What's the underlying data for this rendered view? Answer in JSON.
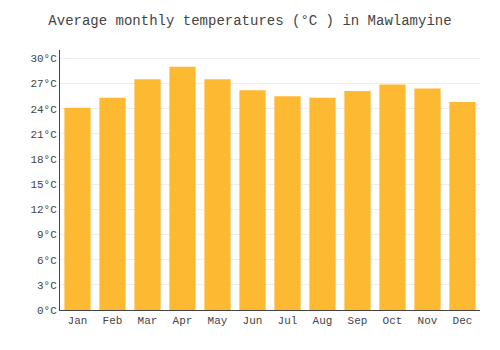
{
  "chart_data": {
    "type": "bar",
    "title": "Average monthly temperatures (°C ) in Mawlamyine",
    "categories": [
      "Jan",
      "Feb",
      "Mar",
      "Apr",
      "May",
      "Jun",
      "Jul",
      "Aug",
      "Sep",
      "Oct",
      "Nov",
      "Dec"
    ],
    "values": [
      24.1,
      25.3,
      27.5,
      29.0,
      27.5,
      26.2,
      25.5,
      25.3,
      26.1,
      26.9,
      26.4,
      24.8
    ],
    "color": "#FDB931",
    "ylim": [
      0,
      31
    ],
    "yticks": [
      {
        "value": 0,
        "label": "0°C"
      },
      {
        "value": 3,
        "label": "3°C"
      },
      {
        "value": 6,
        "label": "6°C"
      },
      {
        "value": 9,
        "label": "9°C"
      },
      {
        "value": 12,
        "label": "12°C"
      },
      {
        "value": 15,
        "label": "15°C"
      },
      {
        "value": 18,
        "label": "18°C"
      },
      {
        "value": 21,
        "label": "21°C"
      },
      {
        "value": 24,
        "label": "24°C"
      },
      {
        "value": 27,
        "label": "27°C"
      },
      {
        "value": 30,
        "label": "30°C"
      }
    ],
    "grid": true
  }
}
